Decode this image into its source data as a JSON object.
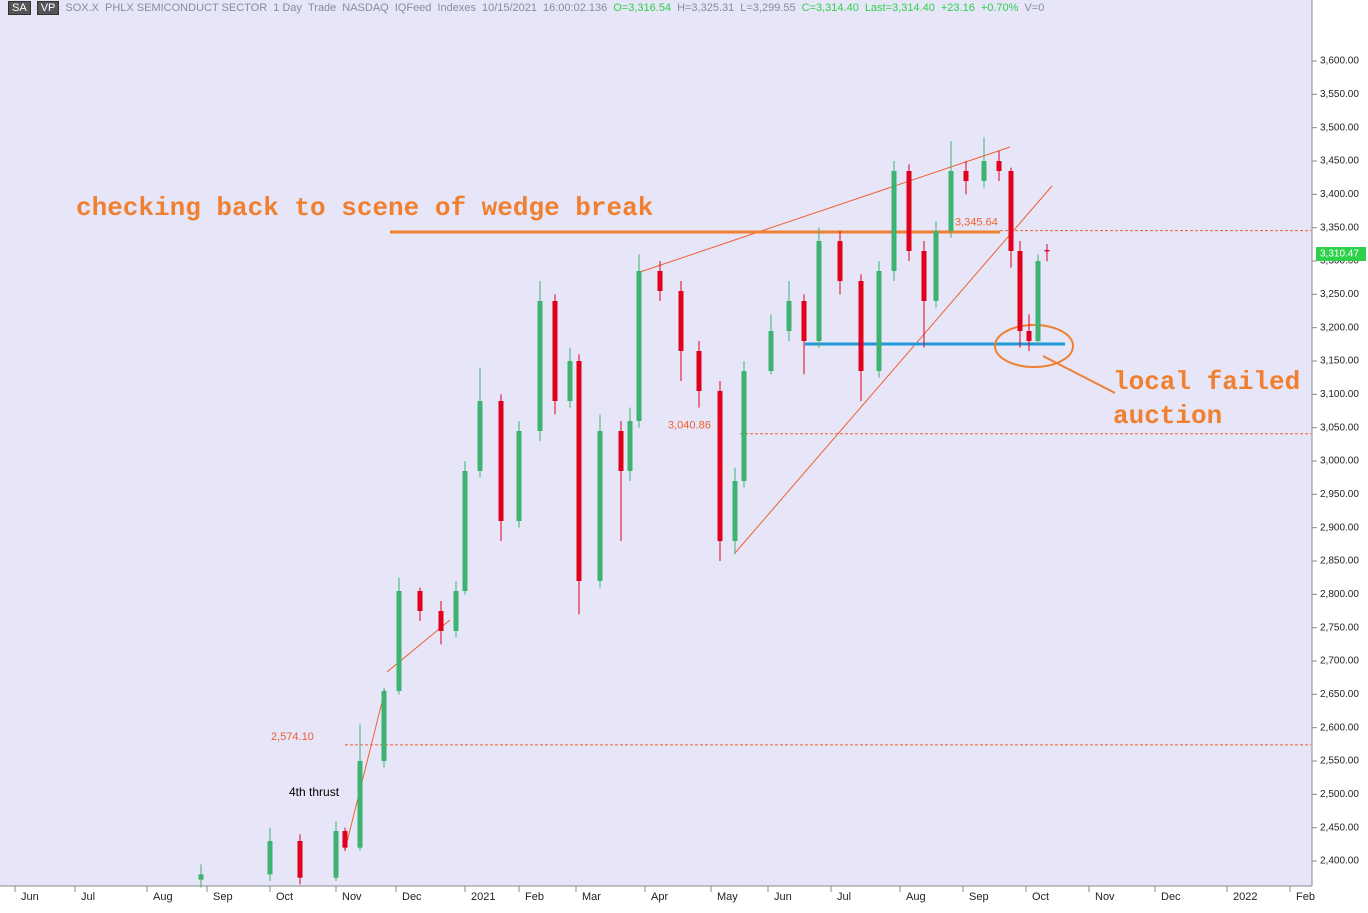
{
  "chart_data": {
    "type": "candlestick",
    "header": {
      "layout": "SA",
      "vp": "VP",
      "symbol": "SOX.X",
      "name": "PHLX SEMICONDUCT SECTOR",
      "period": "1 Day",
      "mode": "Trade",
      "exchange": "NASDAQ",
      "feed": "IQFeed",
      "group": "Indexes",
      "date": "10/15/2021",
      "time": "16:00:02.136",
      "open": "O=3,316.54",
      "high": "H=3,325.31",
      "low": "L=3,299.55",
      "close": "C=3,314.40",
      "last": "Last=3,314.40",
      "change": "+23.16",
      "change_pct": "+0.70%",
      "volume": "V=0"
    },
    "up_color": "#3cb371",
    "down_color": "#e0001b",
    "x": [
      67,
      90,
      100,
      112,
      115,
      120,
      128,
      133,
      140,
      147,
      152,
      155,
      160,
      167,
      173,
      180,
      185,
      190,
      193,
      200,
      207,
      210,
      213,
      220,
      227,
      233,
      240,
      245,
      248,
      257,
      263,
      268,
      273,
      280,
      287,
      293,
      298,
      303,
      308,
      312,
      317,
      322,
      328,
      333,
      337,
      340,
      343,
      346,
      349
    ],
    "open": [
      2372,
      2380,
      2430,
      2375,
      2445,
      2420,
      2550,
      2655,
      2805,
      2775,
      2745,
      2805,
      2985,
      3090,
      2910,
      3045,
      3240,
      3090,
      3150,
      2820,
      3045,
      2985,
      3060,
      3285,
      3255,
      3165,
      3105,
      2880,
      2970,
      3135,
      3195,
      3240,
      3180,
      3330,
      3270,
      3135,
      3285,
      3435,
      3315,
      3240,
      3345,
      3435,
      3420,
      3450,
      3435,
      3315,
      3195,
      3180,
      3316.54
    ],
    "high": [
      2395,
      2450,
      2440,
      2460,
      2450,
      2605,
      2660,
      2825,
      2810,
      2790,
      2820,
      3000,
      3140,
      3100,
      3060,
      3270,
      3250,
      3170,
      3160,
      3070,
      3060,
      3080,
      3310,
      3300,
      3270,
      3180,
      3120,
      2990,
      3150,
      3220,
      3270,
      3250,
      3350,
      3345,
      3280,
      3300,
      3450,
      3445,
      3330,
      3360,
      3480,
      3450,
      3485,
      3465,
      3440,
      3330,
      3220,
      3310,
      3325.31
    ],
    "low": [
      2360,
      2370,
      2365,
      2370,
      2415,
      2415,
      2540,
      2650,
      2760,
      2725,
      2735,
      2800,
      2975,
      2880,
      2900,
      3030,
      3070,
      3080,
      2770,
      2810,
      2880,
      2970,
      3050,
      3240,
      3120,
      3080,
      2850,
      2860,
      2960,
      3130,
      3180,
      3130,
      3170,
      3250,
      3090,
      3125,
      3270,
      3300,
      3170,
      3230,
      3335,
      3400,
      3410,
      3420,
      3290,
      3170,
      3165,
      3175,
      3299.55
    ],
    "close": [
      2380,
      2430,
      2375,
      2445,
      2420,
      2550,
      2655,
      2805,
      2775,
      2745,
      2805,
      2985,
      3090,
      2910,
      3045,
      3240,
      3090,
      3150,
      2820,
      3045,
      2985,
      3060,
      3285,
      3255,
      3165,
      3105,
      2880,
      2970,
      3135,
      3195,
      3240,
      3180,
      3330,
      3270,
      3135,
      3285,
      3435,
      3315,
      3240,
      3345,
      3435,
      3420,
      3450,
      3435,
      3315,
      3195,
      3180,
      3300,
      3314.4
    ],
    "xlim": [
      0,
      437
    ],
    "xticks": [
      {
        "value": 5,
        "label": "Jun"
      },
      {
        "value": 25,
        "label": "Jul"
      },
      {
        "value": 49,
        "label": "Aug"
      },
      {
        "value": 69,
        "label": "Sep"
      },
      {
        "value": 90,
        "label": "Oct"
      },
      {
        "value": 112,
        "label": "Nov"
      },
      {
        "value": 132,
        "label": "Dec"
      },
      {
        "value": 155,
        "label": "2021"
      },
      {
        "value": 173,
        "label": "Feb"
      },
      {
        "value": 192,
        "label": "Mar"
      },
      {
        "value": 215,
        "label": "Apr"
      },
      {
        "value": 237,
        "label": "May"
      },
      {
        "value": 256,
        "label": "Jun"
      },
      {
        "value": 277,
        "label": "Jul"
      },
      {
        "value": 300,
        "label": "Aug"
      },
      {
        "value": 321,
        "label": "Sep"
      },
      {
        "value": 342,
        "label": "Oct"
      },
      {
        "value": 363,
        "label": "Nov"
      },
      {
        "value": 385,
        "label": "Dec"
      },
      {
        "value": 409,
        "label": "2022"
      },
      {
        "value": 430,
        "label": "Feb"
      }
    ],
    "ylim": [
      2362.5,
      3691.5
    ],
    "yticks": [
      {
        "value": 2400,
        "label": "2,400.00"
      },
      {
        "value": 2450,
        "label": "2,450.00"
      },
      {
        "value": 2500,
        "label": "2,500.00"
      },
      {
        "value": 2550,
        "label": "2,550.00"
      },
      {
        "value": 2600,
        "label": "2,600.00"
      },
      {
        "value": 2650,
        "label": "2,650.00"
      },
      {
        "value": 2700,
        "label": "2,700.00"
      },
      {
        "value": 2750,
        "label": "2,750.00"
      },
      {
        "value": 2800,
        "label": "2,800.00"
      },
      {
        "value": 2850,
        "label": "2,850.00"
      },
      {
        "value": 2900,
        "label": "2,900.00"
      },
      {
        "value": 2950,
        "label": "2,950.00"
      },
      {
        "value": 3000,
        "label": "3,000.00"
      },
      {
        "value": 3050,
        "label": "3,050.00"
      },
      {
        "value": 3100,
        "label": "3,100.00"
      },
      {
        "value": 3150,
        "label": "3,150.00"
      },
      {
        "value": 3200,
        "label": "3,200.00"
      },
      {
        "value": 3250,
        "label": "3,250.00"
      },
      {
        "value": 3300,
        "label": "3,300.00"
      },
      {
        "value": 3350,
        "label": "3,350.00"
      },
      {
        "value": 3400,
        "label": "3,400.00"
      },
      {
        "value": 3450,
        "label": "3,450.00"
      },
      {
        "value": 3500,
        "label": "3,500.00"
      },
      {
        "value": 3550,
        "label": "3,550.00"
      },
      {
        "value": 3600,
        "label": "3,600.00"
      }
    ],
    "levels": [
      {
        "value": 3345.64,
        "label": "3,345.64"
      },
      {
        "value": 3040.86,
        "label": "3,040.86"
      },
      {
        "value": 2574.1,
        "label": "2,574.10"
      }
    ],
    "last_badge": {
      "value": 3310.47,
      "label": "3,310.47"
    },
    "annotations": {
      "wedge": "checking back to scene of wedge break",
      "auction": [
        "local failed",
        "auction"
      ],
      "thrust": "4th thrust"
    }
  }
}
